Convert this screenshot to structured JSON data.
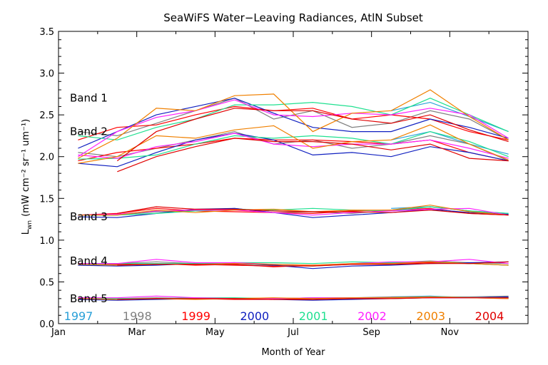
{
  "chart_data": {
    "type": "line",
    "title": "SeaWiFS Water−Leaving Radiances, AtlN Subset",
    "xlabel": "Month of Year",
    "ylabel": "L_wn (mW cm⁻² sr⁻¹ um⁻¹)",
    "ylabel_main": "L",
    "ylabel_sub": "wn",
    "ylabel_rest": "(mW cm⁻² sr⁻¹ um⁻¹)",
    "xlim": [
      0,
      12
    ],
    "ylim": [
      0,
      3.5
    ],
    "x_ticks": [
      {
        "label": "Jan",
        "value": 0
      },
      {
        "label": "Mar",
        "value": 2
      },
      {
        "label": "May",
        "value": 4
      },
      {
        "label": "Jul",
        "value": 6
      },
      {
        "label": "Sep",
        "value": 8
      },
      {
        "label": "Nov",
        "value": 10
      }
    ],
    "y_ticks": [
      "0.0",
      "0.5",
      "1.0",
      "1.5",
      "2.0",
      "2.5",
      "3.0",
      "3.5"
    ],
    "grid": false,
    "band_labels": [
      {
        "label": "Band 1",
        "y": 2.7
      },
      {
        "label": "Band 2",
        "y": 2.3
      },
      {
        "label": "Band 3",
        "y": 1.28
      },
      {
        "label": "Band 4",
        "y": 0.75
      },
      {
        "label": "Band 5",
        "y": 0.3
      }
    ],
    "x": [
      0.5,
      1.5,
      2.5,
      3.5,
      4.5,
      5.5,
      6.5,
      7.5,
      8.5,
      9.5,
      10.5,
      11.5
    ],
    "series": [
      {
        "name": "1997",
        "color": "#2aa0d8",
        "values": {
          "band1": [
            null,
            null,
            null,
            null,
            null,
            null,
            null,
            null,
            2.55,
            2.65,
            2.48,
            2.3
          ],
          "band2": [
            null,
            null,
            null,
            null,
            null,
            null,
            null,
            null,
            2.2,
            2.3,
            2.15,
            2.03
          ],
          "band3": [
            null,
            null,
            null,
            null,
            null,
            null,
            null,
            null,
            1.38,
            1.4,
            1.35,
            1.32
          ],
          "band4": [
            null,
            null,
            null,
            null,
            null,
            null,
            null,
            null,
            0.73,
            0.74,
            0.72,
            0.7
          ],
          "band5": [
            null,
            null,
            null,
            null,
            null,
            null,
            null,
            null,
            0.32,
            0.33,
            0.31,
            0.31
          ]
        }
      },
      {
        "name": "1998",
        "color": "#808080",
        "values": {
          "band1": [
            2.3,
            2.25,
            2.4,
            2.55,
            2.7,
            2.45,
            2.55,
            2.35,
            2.4,
            2.55,
            2.45,
            2.2
          ],
          "band2": [
            2.05,
            2.0,
            2.1,
            2.2,
            2.3,
            2.15,
            2.2,
            2.1,
            2.15,
            2.25,
            2.15,
            1.95
          ],
          "band3": [
            1.3,
            1.3,
            1.34,
            1.35,
            1.38,
            1.33,
            1.34,
            1.32,
            1.36,
            1.4,
            1.35,
            1.3
          ],
          "band4": [
            0.72,
            0.72,
            0.74,
            0.72,
            0.73,
            0.7,
            0.69,
            0.71,
            0.73,
            0.75,
            0.73,
            0.72
          ],
          "band5": [
            0.31,
            0.3,
            0.31,
            0.3,
            0.3,
            0.3,
            0.31,
            0.31,
            0.32,
            0.32,
            0.32,
            0.33
          ]
        }
      },
      {
        "name": "1999",
        "color": "#ff0000",
        "values": {
          "band1": [
            2.2,
            2.35,
            2.38,
            2.5,
            2.6,
            2.55,
            2.58,
            2.45,
            2.5,
            2.45,
            2.3,
            2.2
          ],
          "band2": [
            1.95,
            2.05,
            2.1,
            2.15,
            2.22,
            2.2,
            2.2,
            2.18,
            2.15,
            2.2,
            2.05,
            1.95
          ],
          "band3": [
            1.3,
            1.32,
            1.38,
            1.35,
            1.34,
            1.33,
            1.32,
            1.35,
            1.36,
            1.38,
            1.32,
            1.3
          ],
          "band4": [
            0.72,
            0.71,
            0.72,
            0.7,
            0.71,
            0.68,
            0.7,
            0.71,
            0.72,
            0.73,
            0.72,
            0.74
          ],
          "band5": [
            0.3,
            0.29,
            0.3,
            0.3,
            0.29,
            0.29,
            0.3,
            0.3,
            0.31,
            0.31,
            0.31,
            0.31
          ]
        }
      },
      {
        "name": "2000",
        "color": "#1020c0",
        "values": {
          "band1": [
            2.1,
            2.3,
            2.5,
            2.6,
            2.7,
            2.52,
            2.35,
            2.3,
            2.3,
            2.45,
            2.35,
            2.22
          ],
          "band2": [
            1.92,
            1.88,
            2.05,
            2.2,
            2.28,
            2.2,
            2.02,
            2.05,
            2.0,
            2.12,
            2.05,
            1.95
          ],
          "band3": [
            1.28,
            1.27,
            1.32,
            1.37,
            1.38,
            1.33,
            1.27,
            1.3,
            1.33,
            1.37,
            1.33,
            1.31
          ],
          "band4": [
            0.7,
            0.69,
            0.7,
            0.72,
            0.72,
            0.7,
            0.66,
            0.69,
            0.7,
            0.72,
            0.73,
            0.74
          ],
          "band5": [
            0.29,
            0.28,
            0.29,
            0.3,
            0.3,
            0.29,
            0.28,
            0.29,
            0.3,
            0.31,
            0.31,
            0.32
          ]
        }
      },
      {
        "name": "2001",
        "color": "#20e090",
        "values": {
          "band1": [
            2.25,
            2.2,
            2.35,
            2.45,
            2.62,
            2.62,
            2.65,
            2.6,
            2.5,
            2.7,
            2.5,
            2.3
          ],
          "band2": [
            1.97,
            1.98,
            2.02,
            2.15,
            2.25,
            2.22,
            2.25,
            2.22,
            2.15,
            2.3,
            2.18,
            2.0
          ],
          "band3": [
            1.3,
            1.3,
            1.32,
            1.35,
            1.37,
            1.36,
            1.38,
            1.36,
            1.35,
            1.4,
            1.35,
            1.32
          ],
          "band4": [
            0.71,
            0.72,
            0.72,
            0.72,
            0.73,
            0.73,
            0.72,
            0.74,
            0.73,
            0.74,
            0.72,
            0.7
          ],
          "band5": [
            0.3,
            0.3,
            0.3,
            0.31,
            0.31,
            0.3,
            0.31,
            0.31,
            0.31,
            0.32,
            0.31,
            0.31
          ]
        }
      },
      {
        "name": "2002",
        "color": "#ff20ff",
        "values": {
          "band1": [
            2.0,
            2.3,
            2.47,
            2.55,
            2.68,
            2.5,
            2.48,
            2.52,
            2.5,
            2.58,
            2.5,
            2.22
          ],
          "band2": [
            2.02,
            1.98,
            2.12,
            2.18,
            2.28,
            2.15,
            2.12,
            2.15,
            2.15,
            2.2,
            2.1,
            1.98
          ],
          "band3": [
            1.3,
            1.31,
            1.35,
            1.36,
            1.36,
            1.33,
            1.3,
            1.33,
            1.35,
            1.37,
            1.38,
            1.3
          ],
          "band4": [
            0.72,
            0.72,
            0.77,
            0.73,
            0.73,
            0.71,
            0.7,
            0.72,
            0.74,
            0.74,
            0.77,
            0.72
          ],
          "band5": [
            0.31,
            0.31,
            0.33,
            0.31,
            0.3,
            0.3,
            0.31,
            0.31,
            0.31,
            0.31,
            0.31,
            0.3
          ]
        }
      },
      {
        "name": "2003",
        "color": "#f08000",
        "values": {
          "band1": [
            1.98,
            2.22,
            2.58,
            2.55,
            2.73,
            2.75,
            2.3,
            2.52,
            2.55,
            2.8,
            2.48,
            2.2
          ],
          "band2": [
            1.92,
            2.0,
            2.25,
            2.22,
            2.32,
            2.37,
            2.1,
            2.18,
            2.2,
            2.38,
            2.15,
            1.96
          ],
          "band3": [
            1.3,
            1.3,
            1.36,
            1.33,
            1.36,
            1.37,
            1.34,
            1.36,
            1.36,
            1.42,
            1.34,
            1.3
          ],
          "band4": [
            0.71,
            0.7,
            0.71,
            0.71,
            0.72,
            0.71,
            0.7,
            0.72,
            0.72,
            0.74,
            0.72,
            0.7
          ],
          "band5": [
            0.3,
            0.29,
            0.3,
            0.29,
            0.3,
            0.31,
            0.3,
            0.31,
            0.31,
            0.32,
            0.31,
            0.3
          ]
        }
      },
      {
        "name": "2004",
        "color": "#e00000",
        "values": {
          "band1": [
            null,
            1.95,
            2.3,
            2.45,
            2.58,
            2.55,
            2.55,
            2.45,
            2.4,
            2.5,
            2.32,
            2.18
          ],
          "band2": [
            null,
            1.82,
            2.0,
            2.12,
            2.22,
            2.18,
            2.18,
            2.15,
            2.08,
            2.15,
            1.98,
            1.95
          ],
          "band3": [
            null,
            1.32,
            1.4,
            1.37,
            1.37,
            1.35,
            1.34,
            1.34,
            1.33,
            1.36,
            1.32,
            1.3
          ],
          "band4": [
            null,
            0.7,
            0.71,
            0.71,
            0.7,
            0.69,
            0.69,
            0.71,
            0.71,
            0.72,
            0.72,
            0.74
          ],
          "band5": [
            null,
            0.29,
            0.3,
            0.3,
            0.3,
            0.29,
            0.29,
            0.3,
            0.3,
            0.31,
            0.31,
            0.31
          ]
        }
      }
    ]
  }
}
